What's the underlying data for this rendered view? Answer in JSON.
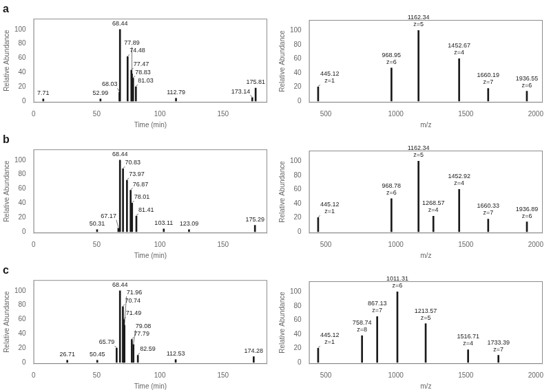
{
  "chart_data": [
    {
      "type": "bar",
      "title": "a",
      "xlabel": "Time (min)",
      "ylabel": "Relative Abundance",
      "color": "#1a1a1a",
      "grid": false,
      "x": [
        7.71,
        52.99,
        68.03,
        68.44,
        74.48,
        77.47,
        77.89,
        78.83,
        81.03,
        112.79,
        173.14,
        175.81
      ],
      "values": [
        3,
        3,
        12,
        100,
        62,
        43,
        38,
        32,
        20,
        4,
        5,
        18
      ],
      "annotations": [
        {
          "text": "7.71",
          "x": 7.71,
          "y": 3
        },
        {
          "text": "52.99",
          "x": 52.99,
          "y": 3
        },
        {
          "text": "68.03",
          "x": 68.03,
          "y": 12
        },
        {
          "text": "68.44",
          "x": 68.44,
          "y": 100
        },
        {
          "text": "74.48",
          "x": 74.48,
          "y": 62
        },
        {
          "text": "77.47",
          "x": 77.47,
          "y": 43
        },
        {
          "text": "77.89",
          "x": 77.89,
          "y": 38
        },
        {
          "text": "78.83",
          "x": 78.83,
          "y": 32
        },
        {
          "text": "81.03",
          "x": 81.03,
          "y": 20
        },
        {
          "text": "112.79",
          "x": 112.79,
          "y": 4
        },
        {
          "text": "173.14",
          "x": 173.14,
          "y": 5
        },
        {
          "text": "175.81",
          "x": 175.81,
          "y": 18
        }
      ],
      "xlim": [
        0,
        185
      ],
      "xticks": [
        0,
        50,
        100,
        150
      ],
      "ylim": [
        -2,
        115
      ],
      "yticks": [
        0,
        20,
        40,
        60,
        80,
        100
      ]
    },
    {
      "type": "bar",
      "xlabel": "m/z",
      "ylabel": "Relative Abundance",
      "color": "#1a1a1a",
      "grid": false,
      "x": [
        445.12,
        968.95,
        1162.34,
        1452.67,
        1660.19,
        1936.55
      ],
      "values": [
        20,
        47,
        100,
        60,
        18,
        14
      ],
      "annotations": [
        {
          "text": "445.12",
          "x": 445.12,
          "y": 20
        },
        {
          "text": "z=1",
          "x": 445.12,
          "y": 20
        },
        {
          "text": "968.95",
          "x": 968.95,
          "y": 47
        },
        {
          "text": "z=6",
          "x": 968.95,
          "y": 47
        },
        {
          "text": "1162.34",
          "x": 1162.34,
          "y": 100
        },
        {
          "text": "z=5",
          "x": 1162.34,
          "y": 100
        },
        {
          "text": "1452.67",
          "x": 1452.67,
          "y": 60
        },
        {
          "text": "z=4",
          "x": 1452.67,
          "y": 60
        },
        {
          "text": "1660.19",
          "x": 1660.19,
          "y": 18
        },
        {
          "text": "z=7",
          "x": 1660.19,
          "y": 18
        },
        {
          "text": "1936.55",
          "x": 1936.55,
          "y": 14
        },
        {
          "text": "z=6",
          "x": 1936.55,
          "y": 14
        }
      ],
      "xlim": [
        380,
        2050
      ],
      "xticks": [
        500,
        1000,
        1500,
        2000
      ],
      "ylim": [
        -2,
        115
      ],
      "yticks": [
        0,
        20,
        40,
        60,
        80,
        100
      ]
    },
    {
      "type": "bar",
      "title": "b",
      "xlabel": "Time (min)",
      "ylabel": "Relative Abundance",
      "color": "#1a1a1a",
      "grid": false,
      "x": [
        50.31,
        67.17,
        68.44,
        70.83,
        73.97,
        76.87,
        78.01,
        81.41,
        103.11,
        123.09,
        175.29
      ],
      "values": [
        3,
        5,
        100,
        88,
        72,
        58,
        40,
        22,
        4,
        3,
        9
      ],
      "annotations": [
        {
          "text": "50.31",
          "x": 50.31,
          "y": 3
        },
        {
          "text": "67.17",
          "x": 67.17,
          "y": 5
        },
        {
          "text": "68.44",
          "x": 68.44,
          "y": 100
        },
        {
          "text": "70.83",
          "x": 70.83,
          "y": 88
        },
        {
          "text": "73.97",
          "x": 73.97,
          "y": 72
        },
        {
          "text": "76.87",
          "x": 76.87,
          "y": 58
        },
        {
          "text": "78.01",
          "x": 78.01,
          "y": 40
        },
        {
          "text": "81.41",
          "x": 81.41,
          "y": 22
        },
        {
          "text": "103.11",
          "x": 103.11,
          "y": 4
        },
        {
          "text": "123.09",
          "x": 123.09,
          "y": 3
        },
        {
          "text": "175.29",
          "x": 175.29,
          "y": 9
        }
      ],
      "xlim": [
        0,
        185
      ],
      "xticks": [
        0,
        50,
        100,
        150
      ],
      "ylim": [
        -2,
        115
      ],
      "yticks": [
        0,
        20,
        40,
        60,
        80,
        100
      ]
    },
    {
      "type": "bar",
      "xlabel": "m/z",
      "ylabel": "Relative Abundance",
      "color": "#1a1a1a",
      "grid": false,
      "x": [
        445.12,
        968.78,
        1162.34,
        1268.57,
        1452.92,
        1660.33,
        1936.89
      ],
      "values": [
        20,
        47,
        100,
        22,
        60,
        18,
        14
      ],
      "annotations": [
        {
          "text": "445.12",
          "x": 445.12,
          "y": 20
        },
        {
          "text": "z=1",
          "x": 445.12,
          "y": 20
        },
        {
          "text": "968.78",
          "x": 968.78,
          "y": 47
        },
        {
          "text": "z=6",
          "x": 968.78,
          "y": 47
        },
        {
          "text": "1162.34",
          "x": 1162.34,
          "y": 100
        },
        {
          "text": "z=5",
          "x": 1162.34,
          "y": 100
        },
        {
          "text": "1268.57",
          "x": 1268.57,
          "y": 22
        },
        {
          "text": "z=4",
          "x": 1268.57,
          "y": 22
        },
        {
          "text": "1452.92",
          "x": 1452.92,
          "y": 60
        },
        {
          "text": "z=4",
          "x": 1452.92,
          "y": 60
        },
        {
          "text": "1660.33",
          "x": 1660.33,
          "y": 18
        },
        {
          "text": "z=7",
          "x": 1660.33,
          "y": 18
        },
        {
          "text": "1936.89",
          "x": 1936.89,
          "y": 14
        },
        {
          "text": "z=6",
          "x": 1936.89,
          "y": 14
        }
      ],
      "xlim": [
        380,
        2050
      ],
      "xticks": [
        500,
        1000,
        1500,
        2000
      ],
      "ylim": [
        -2,
        115
      ],
      "yticks": [
        0,
        20,
        40,
        60,
        80,
        100
      ]
    },
    {
      "type": "bar",
      "title": "c",
      "xlabel": "Time (min)",
      "ylabel": "Relative Abundance",
      "color": "#1a1a1a",
      "grid": false,
      "x": [
        26.71,
        50.45,
        65.79,
        68.44,
        70.74,
        71.49,
        71.96,
        77.79,
        79.08,
        82.59,
        112.53,
        174.28
      ],
      "values": [
        3,
        3,
        20,
        100,
        78,
        60,
        52,
        32,
        25,
        10,
        4,
        8
      ],
      "annotations": [
        {
          "text": "26.71",
          "x": 26.71,
          "y": 3
        },
        {
          "text": "50.45",
          "x": 50.45,
          "y": 3
        },
        {
          "text": "65.79",
          "x": 65.79,
          "y": 20
        },
        {
          "text": "68.44",
          "x": 68.44,
          "y": 100
        },
        {
          "text": "70.74",
          "x": 70.74,
          "y": 78
        },
        {
          "text": "71.49",
          "x": 71.49,
          "y": 60
        },
        {
          "text": "71.96",
          "x": 71.96,
          "y": 52
        },
        {
          "text": "77.79",
          "x": 77.79,
          "y": 32
        },
        {
          "text": "79.08",
          "x": 79.08,
          "y": 25
        },
        {
          "text": "82.59",
          "x": 82.59,
          "y": 10
        },
        {
          "text": "112.53",
          "x": 112.53,
          "y": 4
        },
        {
          "text": "174.28",
          "x": 174.28,
          "y": 8
        }
      ],
      "xlim": [
        0,
        185
      ],
      "xticks": [
        0,
        50,
        100,
        150
      ],
      "ylim": [
        -2,
        115
      ],
      "yticks": [
        0,
        20,
        40,
        60,
        80,
        100
      ]
    },
    {
      "type": "bar",
      "xlabel": "m/z",
      "ylabel": "Relative Abundance",
      "color": "#1a1a1a",
      "grid": false,
      "x": [
        445.12,
        758.74,
        867.13,
        1011.31,
        1213.57,
        1516.71,
        1733.39
      ],
      "values": [
        20,
        38,
        65,
        100,
        55,
        18,
        10
      ],
      "annotations": [
        {
          "text": "445.12",
          "x": 445.12,
          "y": 20
        },
        {
          "text": "z=1",
          "x": 445.12,
          "y": 20
        },
        {
          "text": "758.74",
          "x": 758.74,
          "y": 38
        },
        {
          "text": "z=8",
          "x": 758.74,
          "y": 38
        },
        {
          "text": "867.13",
          "x": 867.13,
          "y": 65
        },
        {
          "text": "z=7",
          "x": 867.13,
          "y": 65
        },
        {
          "text": "1011.31",
          "x": 1011.31,
          "y": 100
        },
        {
          "text": "z=6",
          "x": 1011.31,
          "y": 100
        },
        {
          "text": "1213.57",
          "x": 1213.57,
          "y": 55
        },
        {
          "text": "z=5",
          "x": 1213.57,
          "y": 55
        },
        {
          "text": "1516.71",
          "x": 1516.71,
          "y": 18
        },
        {
          "text": "z=4",
          "x": 1516.71,
          "y": 18
        },
        {
          "text": "1733.39",
          "x": 1733.39,
          "y": 10
        },
        {
          "text": "z=7",
          "x": 1733.39,
          "y": 10
        }
      ],
      "xlim": [
        380,
        2050
      ],
      "xticks": [
        500,
        1000,
        1500,
        2000
      ],
      "ylim": [
        -2,
        115
      ],
      "yticks": [
        0,
        20,
        40,
        60,
        80,
        100
      ]
    }
  ]
}
